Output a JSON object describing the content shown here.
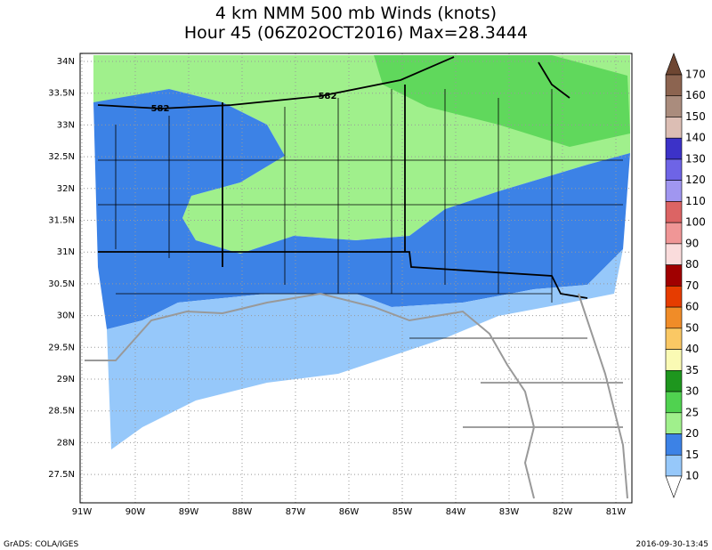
{
  "title": [
    "4 km NMM 500 mb Winds (knots)",
    "Hour 45 (06Z02OCT2016) Max=28.3444"
  ],
  "lat_labels": [
    "34N",
    "33.5N",
    "33N",
    "32.5N",
    "32N",
    "31.5N",
    "31N",
    "30.5N",
    "30N",
    "29.5N",
    "29N",
    "28.5N",
    "28N",
    "27.5N"
  ],
  "lon_labels": [
    "91W",
    "90W",
    "89W",
    "88W",
    "87W",
    "86W",
    "85W",
    "84W",
    "83W",
    "82W",
    "81W"
  ],
  "contour_labels": [
    "582",
    "582"
  ],
  "colorbar": {
    "labels": [
      "170",
      "160",
      "150",
      "140",
      "130",
      "120",
      "110",
      "100",
      "90",
      "80",
      "70",
      "60",
      "50",
      "40",
      "35",
      "30",
      "25",
      "20",
      "15",
      "10"
    ],
    "colors": [
      "#6e4632",
      "#8c6450",
      "#aa8c7d",
      "#dcbeb4",
      "#3c32c8",
      "#6e64e6",
      "#a096f0",
      "#dc6464",
      "#f09696",
      "#fadcdc",
      "#a00000",
      "#e63c00",
      "#f08c28",
      "#fac864",
      "#fafab4",
      "#1e961e",
      "#50d250",
      "#a0f08c",
      "#3c82e6",
      "#96c8fa",
      "#ffffff"
    ]
  },
  "footer": {
    "left": "GrADS: COLA/IGES",
    "right": "2016-09-30-13:45"
  }
}
